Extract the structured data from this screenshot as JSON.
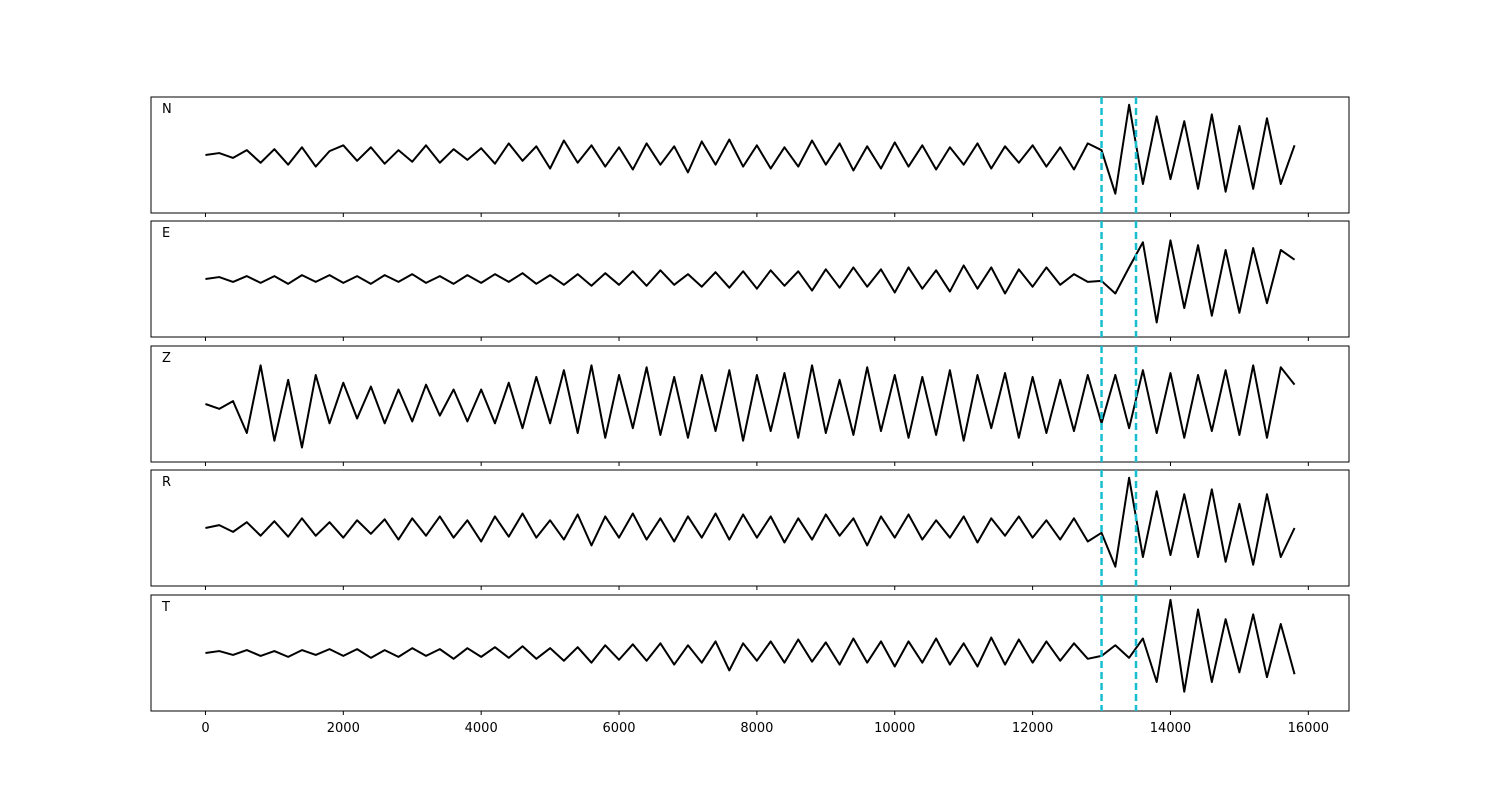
{
  "chart_data": [
    {
      "type": "line",
      "title": "N",
      "color": "#000000",
      "vlines": [
        13000,
        13500
      ],
      "vline_color": "#17becf",
      "xlim": [
        -790,
        16590
      ],
      "ylim": [
        -60,
        60
      ],
      "xticks": [
        0,
        2000,
        4000,
        6000,
        8000,
        10000,
        12000,
        14000,
        16000
      ],
      "x": [
        0,
        200,
        400,
        600,
        800,
        1000,
        1200,
        1400,
        1600,
        1800,
        2000,
        2200,
        2400,
        2600,
        2800,
        3000,
        3200,
        3400,
        3600,
        3800,
        4000,
        4200,
        4400,
        4600,
        4800,
        5000,
        5200,
        5400,
        5600,
        5800,
        6000,
        6200,
        6400,
        6600,
        6800,
        7000,
        7200,
        7400,
        7600,
        7800,
        8000,
        8200,
        8400,
        8600,
        8800,
        9000,
        9200,
        9400,
        9600,
        9800,
        10000,
        10200,
        10400,
        10600,
        10800,
        11000,
        11200,
        11400,
        11600,
        11800,
        12000,
        12200,
        12400,
        12600,
        12800,
        13000,
        13200,
        13400,
        13600,
        13800,
        14000,
        14200,
        14400,
        14600,
        14800,
        15000,
        15200,
        15400,
        15600,
        15800
      ],
      "values": [
        0,
        2,
        -3,
        5,
        -8,
        6,
        -10,
        8,
        -12,
        4,
        10,
        -6,
        8,
        -9,
        5,
        -7,
        10,
        -8,
        6,
        -5,
        7,
        -9,
        12,
        -6,
        9,
        -14,
        15,
        -8,
        10,
        -12,
        8,
        -15,
        12,
        -10,
        9,
        -18,
        14,
        -10,
        16,
        -12,
        10,
        -14,
        8,
        -12,
        15,
        -10,
        12,
        -16,
        9,
        -14,
        13,
        -12,
        10,
        -15,
        8,
        -10,
        12,
        -14,
        9,
        -8,
        10,
        -12,
        8,
        -15,
        12,
        5,
        -40,
        52,
        -30,
        40,
        -25,
        35,
        -35,
        42,
        -38,
        30,
        -35,
        38,
        -30,
        10
      ]
    },
    {
      "type": "line",
      "title": "E",
      "color": "#000000",
      "vlines": [
        13000,
        13500
      ],
      "vline_color": "#17becf",
      "xlim": [
        -790,
        16590
      ],
      "ylim": [
        -60,
        60
      ],
      "xticks": [
        0,
        2000,
        4000,
        6000,
        8000,
        10000,
        12000,
        14000,
        16000
      ],
      "x": [
        0,
        200,
        400,
        600,
        800,
        1000,
        1200,
        1400,
        1600,
        1800,
        2000,
        2200,
        2400,
        2600,
        2800,
        3000,
        3200,
        3400,
        3600,
        3800,
        4000,
        4200,
        4400,
        4600,
        4800,
        5000,
        5200,
        5400,
        5600,
        5800,
        6000,
        6200,
        6400,
        6600,
        6800,
        7000,
        7200,
        7400,
        7600,
        7800,
        8000,
        8200,
        8400,
        8600,
        8800,
        9000,
        9200,
        9400,
        9600,
        9800,
        10000,
        10200,
        10400,
        10600,
        10800,
        11000,
        11200,
        11400,
        11600,
        11800,
        12000,
        12200,
        12400,
        12600,
        12800,
        13000,
        13200,
        13400,
        13600,
        13800,
        14000,
        14200,
        14400,
        14600,
        14800,
        15000,
        15200,
        15400,
        15600,
        15800
      ],
      "values": [
        0,
        2,
        -3,
        3,
        -4,
        3,
        -5,
        4,
        -3,
        4,
        -4,
        3,
        -5,
        4,
        -3,
        5,
        -4,
        3,
        -5,
        4,
        -4,
        5,
        -3,
        6,
        -5,
        4,
        -6,
        5,
        -7,
        6,
        -6,
        8,
        -7,
        9,
        -6,
        5,
        -8,
        7,
        -9,
        8,
        -10,
        9,
        -7,
        8,
        -12,
        10,
        -9,
        12,
        -8,
        10,
        -14,
        12,
        -10,
        9,
        -13,
        14,
        -10,
        12,
        -15,
        10,
        -8,
        12,
        -6,
        5,
        -3,
        -2,
        -15,
        12,
        38,
        -45,
        40,
        -30,
        35,
        -38,
        30,
        -35,
        32,
        -25,
        30,
        20
      ]
    },
    {
      "type": "line",
      "title": "Z",
      "color": "#000000",
      "vlines": [
        13000,
        13500
      ],
      "vline_color": "#17becf",
      "xlim": [
        -790,
        16590
      ],
      "ylim": [
        -60,
        60
      ],
      "xticks": [
        0,
        2000,
        4000,
        6000,
        8000,
        10000,
        12000,
        14000,
        16000
      ],
      "x": [
        0,
        200,
        400,
        600,
        800,
        1000,
        1200,
        1400,
        1600,
        1800,
        2000,
        2200,
        2400,
        2600,
        2800,
        3000,
        3200,
        3400,
        3600,
        3800,
        4000,
        4200,
        4400,
        4600,
        4800,
        5000,
        5200,
        5400,
        5600,
        5800,
        6000,
        6200,
        6400,
        6600,
        6800,
        7000,
        7200,
        7400,
        7600,
        7800,
        8000,
        8200,
        8400,
        8600,
        8800,
        9000,
        9200,
        9400,
        9600,
        9800,
        10000,
        10200,
        10400,
        10600,
        10800,
        11000,
        11200,
        11400,
        11600,
        11800,
        12000,
        12200,
        12400,
        12600,
        12800,
        13000,
        13200,
        13400,
        13600,
        13800,
        14000,
        14200,
        14400,
        14600,
        14800,
        15000,
        15200,
        15400,
        15600,
        15800
      ],
      "values": [
        0,
        -5,
        3,
        -30,
        40,
        -38,
        25,
        -45,
        30,
        -20,
        22,
        -15,
        18,
        -20,
        15,
        -18,
        20,
        -12,
        15,
        -18,
        15,
        -20,
        22,
        -25,
        28,
        -20,
        35,
        -30,
        40,
        -35,
        30,
        -25,
        38,
        -32,
        28,
        -35,
        30,
        -28,
        35,
        -38,
        30,
        -28,
        32,
        -35,
        40,
        -30,
        25,
        -32,
        38,
        -28,
        30,
        -35,
        28,
        -32,
        35,
        -38,
        30,
        -25,
        32,
        -35,
        28,
        -30,
        25,
        -28,
        30,
        -20,
        30,
        -25,
        35,
        -30,
        32,
        -35,
        30,
        -28,
        35,
        -32,
        40,
        -35,
        38,
        20
      ]
    },
    {
      "type": "line",
      "title": "R",
      "color": "#000000",
      "vlines": [
        13000,
        13500
      ],
      "vline_color": "#17becf",
      "xlim": [
        -790,
        16590
      ],
      "ylim": [
        -60,
        60
      ],
      "xticks": [
        0,
        2000,
        4000,
        6000,
        8000,
        10000,
        12000,
        14000,
        16000
      ],
      "x": [
        0,
        200,
        400,
        600,
        800,
        1000,
        1200,
        1400,
        1600,
        1800,
        2000,
        2200,
        2400,
        2600,
        2800,
        3000,
        3200,
        3400,
        3600,
        3800,
        4000,
        4200,
        4400,
        4600,
        4800,
        5000,
        5200,
        5400,
        5600,
        5800,
        6000,
        6200,
        6400,
        6600,
        6800,
        7000,
        7200,
        7400,
        7600,
        7800,
        8000,
        8200,
        8400,
        8600,
        8800,
        9000,
        9200,
        9400,
        9600,
        9800,
        10000,
        10200,
        10400,
        10600,
        10800,
        11000,
        11200,
        11400,
        11600,
        11800,
        12000,
        12200,
        12400,
        12600,
        12800,
        13000,
        13200,
        13400,
        13600,
        13800,
        14000,
        14200,
        14400,
        14600,
        14800,
        15000,
        15200,
        15400,
        15600,
        15800
      ],
      "values": [
        0,
        3,
        -4,
        6,
        -8,
        7,
        -9,
        10,
        -8,
        6,
        -10,
        8,
        -6,
        9,
        -12,
        10,
        -8,
        12,
        -10,
        8,
        -14,
        12,
        -9,
        15,
        -10,
        8,
        -12,
        14,
        -18,
        12,
        -10,
        15,
        -12,
        10,
        -14,
        12,
        -10,
        15,
        -12,
        14,
        -10,
        12,
        -15,
        10,
        -12,
        14,
        -8,
        10,
        -18,
        12,
        -10,
        14,
        -12,
        8,
        -10,
        12,
        -15,
        10,
        -8,
        12,
        -10,
        8,
        -12,
        10,
        -14,
        -5,
        -40,
        52,
        -30,
        38,
        -28,
        35,
        -30,
        40,
        -35,
        25,
        -38,
        35,
        -30,
        0
      ]
    },
    {
      "type": "line",
      "title": "T",
      "color": "#000000",
      "vlines": [
        13000,
        13500
      ],
      "vline_color": "#17becf",
      "xlim": [
        -790,
        16590
      ],
      "ylim": [
        -60,
        60
      ],
      "xticks": [
        0,
        2000,
        4000,
        6000,
        8000,
        10000,
        12000,
        14000,
        16000
      ],
      "x": [
        0,
        200,
        400,
        600,
        800,
        1000,
        1200,
        1400,
        1600,
        1800,
        2000,
        2200,
        2400,
        2600,
        2800,
        3000,
        3200,
        3400,
        3600,
        3800,
        4000,
        4200,
        4400,
        4600,
        4800,
        5000,
        5200,
        5400,
        5600,
        5800,
        6000,
        6200,
        6400,
        6600,
        6800,
        7000,
        7200,
        7400,
        7600,
        7800,
        8000,
        8200,
        8400,
        8600,
        8800,
        9000,
        9200,
        9400,
        9600,
        9800,
        10000,
        10200,
        10400,
        10600,
        10800,
        11000,
        11200,
        11400,
        11600,
        11800,
        12000,
        12200,
        12400,
        12600,
        12800,
        13000,
        13200,
        13400,
        13600,
        13800,
        14000,
        14200,
        14400,
        14600,
        14800,
        15000,
        15200,
        15400,
        15600,
        15800
      ],
      "values": [
        0,
        2,
        -2,
        3,
        -3,
        2,
        -4,
        3,
        -2,
        4,
        -3,
        4,
        -5,
        3,
        -4,
        5,
        -3,
        4,
        -6,
        5,
        -4,
        6,
        -5,
        7,
        -6,
        5,
        -8,
        6,
        -10,
        8,
        -7,
        9,
        -8,
        10,
        -12,
        8,
        -10,
        12,
        -18,
        10,
        -8,
        12,
        -10,
        14,
        -9,
        11,
        -12,
        15,
        -10,
        12,
        -14,
        12,
        -10,
        15,
        -12,
        10,
        -14,
        16,
        -12,
        14,
        -10,
        12,
        -8,
        10,
        -6,
        -3,
        8,
        -5,
        15,
        -30,
        55,
        -40,
        45,
        -30,
        35,
        -20,
        40,
        -25,
        30,
        -22
      ]
    }
  ]
}
